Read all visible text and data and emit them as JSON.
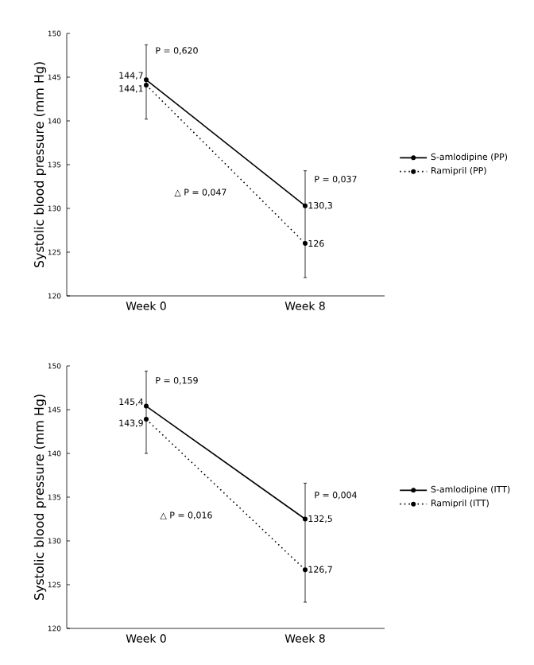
{
  "chart_data": [
    {
      "type": "line",
      "categories": [
        "Week 0",
        "Week 8"
      ],
      "ylabel": "Systolic blood pressure (mm Hg)",
      "ylim": [
        120,
        150
      ],
      "yticks": [
        120,
        125,
        130,
        135,
        140,
        145,
        150
      ],
      "marker": "circle",
      "legend": "right",
      "series": [
        {
          "name": "S-amlodipine (PP)",
          "color": "#000000",
          "line_style": "solid",
          "values": [
            144.7,
            130.3
          ],
          "value_labels": [
            "144,7",
            "130,3"
          ],
          "errors": [
            [
              140.2,
              148.7
            ],
            [
              122.1,
              134.3
            ]
          ]
        },
        {
          "name": "Ramipril (PP)",
          "color": "#000000",
          "line_style": "dotted",
          "values": [
            144.1,
            126
          ],
          "value_labels": [
            "144,1",
            "126"
          ],
          "errors": [
            null,
            null
          ]
        }
      ],
      "annotations": [
        "P = 0,620",
        "P = 0,037",
        "△ P = 0,047"
      ]
    },
    {
      "type": "line",
      "categories": [
        "Week 0",
        "Week 8"
      ],
      "ylabel": "Systolic blood pressure (mm Hg)",
      "ylim": [
        120,
        150
      ],
      "yticks": [
        120,
        125,
        130,
        135,
        140,
        145,
        150
      ],
      "marker": "circle",
      "legend": "right",
      "series": [
        {
          "name": "S-amlodipine (ITT)",
          "color": "#000000",
          "line_style": "solid",
          "values": [
            145.4,
            132.5
          ],
          "value_labels": [
            "145,4",
            "132,5"
          ],
          "errors": [
            [
              140.0,
              149.4
            ],
            [
              123.0,
              136.6
            ]
          ]
        },
        {
          "name": "Ramipril (ITT)",
          "color": "#000000",
          "line_style": "dotted",
          "values": [
            143.9,
            126.7
          ],
          "value_labels": [
            "143,9",
            "126,7"
          ],
          "errors": [
            null,
            null
          ]
        }
      ],
      "annotations": [
        "P = 0,159",
        "P = 0,004",
        "△ P = 0,016"
      ]
    }
  ]
}
